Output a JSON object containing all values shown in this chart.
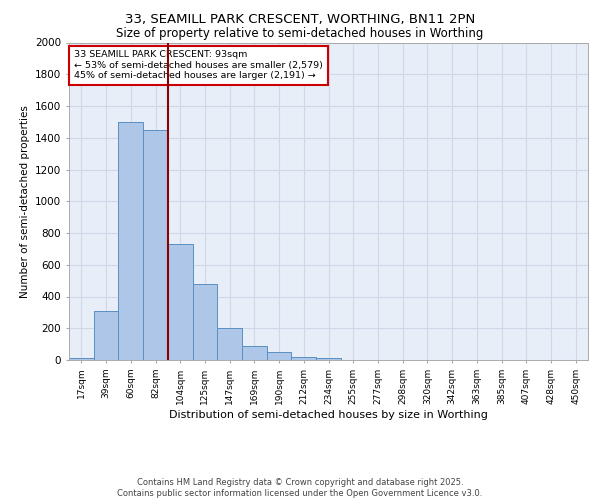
{
  "title_line1": "33, SEAMILL PARK CRESCENT, WORTHING, BN11 2PN",
  "title_line2": "Size of property relative to semi-detached houses in Worthing",
  "xlabel": "Distribution of semi-detached houses by size in Worthing",
  "ylabel": "Number of semi-detached properties",
  "categories": [
    "17sqm",
    "39sqm",
    "60sqm",
    "82sqm",
    "104sqm",
    "125sqm",
    "147sqm",
    "169sqm",
    "190sqm",
    "212sqm",
    "234sqm",
    "255sqm",
    "277sqm",
    "298sqm",
    "320sqm",
    "342sqm",
    "363sqm",
    "385sqm",
    "407sqm",
    "428sqm",
    "450sqm"
  ],
  "values": [
    15,
    310,
    1500,
    1450,
    730,
    480,
    200,
    90,
    50,
    20,
    15,
    0,
    0,
    0,
    0,
    0,
    0,
    0,
    0,
    0,
    0
  ],
  "bar_color": "#aec6e8",
  "bar_edge_color": "#5a8fc2",
  "grid_color": "#d0d8e8",
  "background_color": "#e8eef8",
  "vline_position": 3.5,
  "vline_color": "#8b0000",
  "annotation_text": "33 SEAMILL PARK CRESCENT: 93sqm\n← 53% of semi-detached houses are smaller (2,579)\n45% of semi-detached houses are larger (2,191) →",
  "annotation_box_color": "#ffffff",
  "annotation_box_edge": "#cc0000",
  "footer_text": "Contains HM Land Registry data © Crown copyright and database right 2025.\nContains public sector information licensed under the Open Government Licence v3.0.",
  "ylim": [
    0,
    2000
  ],
  "yticks": [
    0,
    200,
    400,
    600,
    800,
    1000,
    1200,
    1400,
    1600,
    1800,
    2000
  ]
}
